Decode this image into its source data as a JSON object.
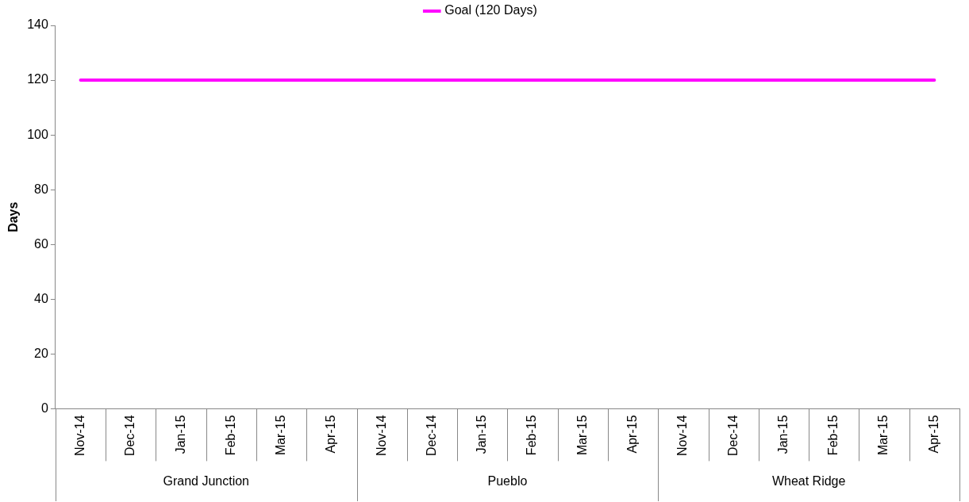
{
  "chart_data": {
    "type": "line",
    "ylabel": "Days",
    "categories": [
      "Nov-14",
      "Dec-14",
      "Jan-15",
      "Feb-15",
      "Mar-15",
      "Apr-15",
      "Nov-14",
      "Dec-14",
      "Jan-15",
      "Feb-15",
      "Mar-15",
      "Apr-15",
      "Nov-14",
      "Dec-14",
      "Jan-15",
      "Feb-15",
      "Mar-15",
      "Apr-15"
    ],
    "series": [
      {
        "name": "Goal (120 Days)",
        "color": "#ff00ff",
        "values": [
          120,
          120,
          120,
          120,
          120,
          120,
          120,
          120,
          120,
          120,
          120,
          120,
          120,
          120,
          120,
          120,
          120,
          120
        ]
      }
    ],
    "annotations": [
      "Grand Junction",
      "Pueblo",
      "Wheat Ridge"
    ],
    "ylim": [
      0,
      140
    ],
    "yticks": [
      0,
      20,
      40,
      60,
      80,
      100,
      120,
      140
    ],
    "grid": false,
    "legend": "top",
    "marker": "none",
    "line_style": "solid"
  }
}
